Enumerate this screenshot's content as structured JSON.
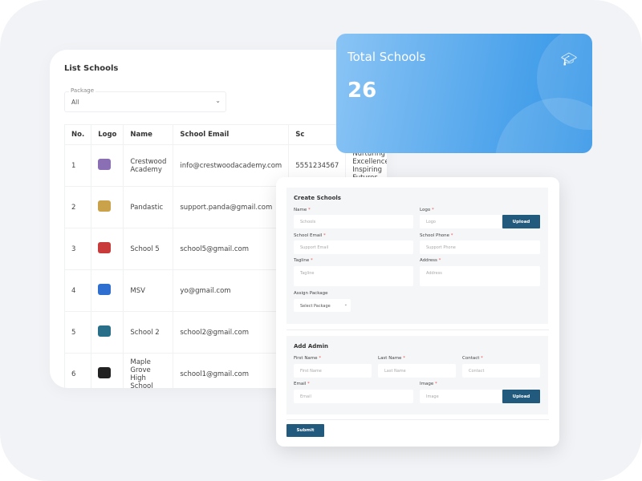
{
  "list": {
    "title": "List Schools",
    "filter": {
      "label": "Package",
      "value": "All"
    },
    "columns": [
      "No.",
      "Logo",
      "Name",
      "School Email",
      "Sc"
    ],
    "rows": [
      {
        "no": "1",
        "name": "Crestwood Academy",
        "email": "info@crestwoodacademy.com",
        "phone": "5551234567",
        "tagline": "Nurturing Excellence, Inspiring Futures",
        "logo_color": "#8b6fb5"
      },
      {
        "no": "2",
        "name": "Pandastic",
        "email": "support.panda@gmail.com",
        "logo_color": "#c9a24a"
      },
      {
        "no": "3",
        "name": "School 5",
        "email": "school5@gmail.com",
        "logo_color": "#c93a3a"
      },
      {
        "no": "4",
        "name": "MSV",
        "email": "yo@gmail.com",
        "logo_color": "#2f6fd0"
      },
      {
        "no": "5",
        "name": "School 2",
        "email": "school2@gmail.com",
        "logo_color": "#2a6f8a"
      },
      {
        "no": "6",
        "name": "Maple Grove High School",
        "email": "school1@gmail.com",
        "logo_color": "#222222"
      }
    ]
  },
  "stat": {
    "title": "Total Schools",
    "value": "26",
    "icon": "graduation-cap-icon"
  },
  "form": {
    "create": {
      "title": "Create Schools",
      "name": {
        "label": "Name",
        "placeholder": "Schools"
      },
      "logo": {
        "label": "Logo",
        "placeholder": "Logo",
        "button": "Upload"
      },
      "email": {
        "label": "School Email",
        "placeholder": "Support Email"
      },
      "phone": {
        "label": "School Phone",
        "placeholder": "Support Phone"
      },
      "tagline": {
        "label": "Tagline",
        "placeholder": "Tagline"
      },
      "address": {
        "label": "Address",
        "placeholder": "Address"
      },
      "package": {
        "label": "Assign Package",
        "value": "Select Package"
      }
    },
    "admin": {
      "title": "Add Admin",
      "first": {
        "label": "First Name",
        "placeholder": "First Name"
      },
      "last": {
        "label": "Last Name",
        "placeholder": "Last Name"
      },
      "contact": {
        "label": "Contact",
        "placeholder": "Contact"
      },
      "email": {
        "label": "Email",
        "placeholder": "Email"
      },
      "image": {
        "label": "Image",
        "placeholder": "Image",
        "button": "Upload"
      }
    },
    "required_mark": "*",
    "submit": "Submit"
  },
  "colors": {
    "primary_button": "#225a7e",
    "card_gradient_start": "#8ac4f5",
    "card_gradient_end": "#2f93e6"
  }
}
